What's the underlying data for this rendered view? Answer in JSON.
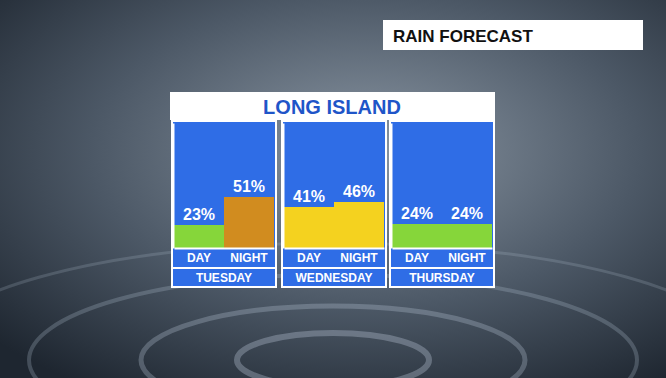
{
  "chart_data": {
    "type": "bar",
    "title": "RAIN FORECAST",
    "subtitle": "LONG ISLAND",
    "categories": [
      "DAY",
      "NIGHT"
    ],
    "series": [
      {
        "name": "TUESDAY",
        "values": [
          23,
          51
        ],
        "value_labels": [
          "23%",
          "51%"
        ],
        "colors": [
          "#86d63a",
          "#d18c1f"
        ]
      },
      {
        "name": "WEDNESDAY",
        "values": [
          41,
          46
        ],
        "value_labels": [
          "41%",
          "46%"
        ],
        "colors": [
          "#f4d21f",
          "#f4d21f"
        ]
      },
      {
        "name": "THURSDAY",
        "values": [
          24,
          24
        ],
        "value_labels": [
          "24%",
          "24%"
        ],
        "colors": [
          "#86d63a",
          "#86d63a"
        ]
      }
    ],
    "ylim": [
      0,
      125
    ],
    "yticks": [],
    "tick_labels": "x",
    "data_labels": true,
    "grid": false
  }
}
